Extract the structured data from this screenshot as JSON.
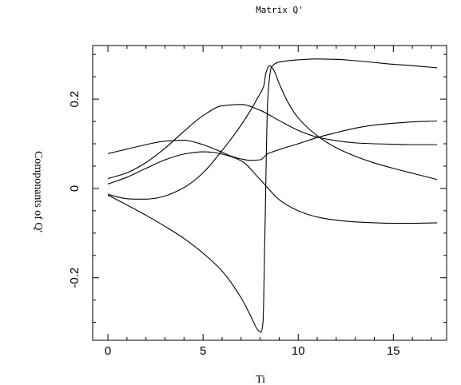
{
  "chart_data": {
    "type": "line",
    "title": "Matrix Q'",
    "xlabel": "Ti",
    "ylabel": "Componants of Q'",
    "xlim": [
      -0.8,
      17.8
    ],
    "ylim": [
      -0.34,
      0.32
    ],
    "xticks": [
      0,
      5,
      10,
      15
    ],
    "xtick_labels": [
      "0",
      "5",
      "10",
      "15"
    ],
    "yticks": [
      -0.2,
      0,
      0.2
    ],
    "ytick_labels": [
      "-0.2",
      "0",
      "0.2"
    ],
    "x_minor_step": 1,
    "y_minor_step": 0.05,
    "grid": false,
    "legend": "none",
    "series": [
      {
        "x": [
          0,
          1,
          2,
          3,
          4,
          5,
          5.5,
          6,
          6.5,
          7,
          7.5,
          8,
          8.2,
          8.4,
          8.6,
          9,
          10,
          11,
          12,
          13,
          14,
          15,
          16,
          17.3
        ],
        "values": [
          0.078,
          0.088,
          0.098,
          0.106,
          0.108,
          0.098,
          0.09,
          0.081,
          0.072,
          0.066,
          0.063,
          0.064,
          0.07,
          0.078,
          0.081,
          0.087,
          0.1,
          0.114,
          0.125,
          0.135,
          0.142,
          0.146,
          0.149,
          0.151
        ]
      },
      {
        "x": [
          0,
          1,
          2,
          3,
          4,
          5,
          6,
          7,
          8,
          9,
          10,
          11,
          12,
          13,
          14,
          15,
          16,
          17.3
        ],
        "values": [
          0.022,
          0.035,
          0.058,
          0.09,
          0.128,
          0.163,
          0.185,
          0.188,
          0.175,
          0.152,
          0.13,
          0.115,
          0.107,
          0.102,
          0.1,
          0.099,
          0.098,
          0.098
        ]
      },
      {
        "x": [
          0,
          1,
          2,
          3,
          4,
          5,
          5.5,
          6,
          7,
          8,
          9,
          10,
          11,
          12,
          13,
          14,
          15,
          16,
          17.3
        ],
        "values": [
          0.01,
          0.025,
          0.045,
          0.064,
          0.077,
          0.082,
          0.081,
          0.077,
          0.062,
          0.02,
          -0.025,
          -0.05,
          -0.064,
          -0.071,
          -0.075,
          -0.077,
          -0.078,
          -0.078,
          -0.077
        ]
      },
      {
        "x": [
          0,
          0.5,
          1,
          1.5,
          2,
          2.5,
          3,
          4,
          5,
          6,
          7,
          7.5,
          7.9,
          8.1,
          8.2,
          8.3,
          8.5,
          8.7,
          9,
          9.5,
          10,
          11,
          12,
          13,
          14,
          15,
          16,
          17.3
        ],
        "values": [
          -0.013,
          -0.019,
          -0.023,
          -0.024,
          -0.024,
          -0.022,
          -0.017,
          0.002,
          0.035,
          0.085,
          0.142,
          0.175,
          0.205,
          0.22,
          0.231,
          0.258,
          0.275,
          0.266,
          0.235,
          0.19,
          0.158,
          0.118,
          0.091,
          0.072,
          0.057,
          0.045,
          0.034,
          0.02
        ]
      },
      {
        "x": [
          0,
          1,
          2,
          3,
          4,
          5,
          6,
          7,
          7.5,
          7.9,
          8.05,
          8.15,
          8.25,
          8.4,
          8.6,
          9,
          10,
          11,
          12,
          13,
          14,
          15,
          16,
          17.3
        ],
        "values": [
          -0.015,
          -0.037,
          -0.06,
          -0.085,
          -0.112,
          -0.145,
          -0.185,
          -0.245,
          -0.285,
          -0.318,
          -0.322,
          -0.3,
          -0.1,
          0.2,
          0.272,
          0.283,
          0.288,
          0.29,
          0.289,
          0.286,
          0.282,
          0.278,
          0.275,
          0.27
        ]
      }
    ]
  }
}
